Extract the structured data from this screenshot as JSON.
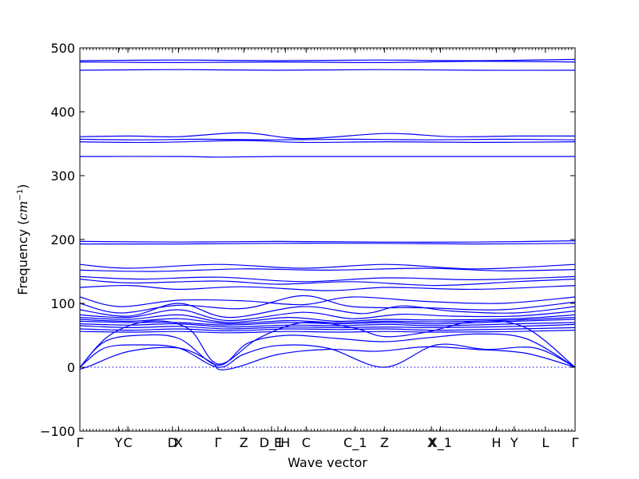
{
  "chart_data": {
    "type": "line",
    "title": "",
    "xlabel": "Wave vector",
    "ylabel": "Frequency ($cm^{-1}$)",
    "ylabel_text": "Frequency (",
    "ylabel_unit_base": "cm",
    "ylabel_unit_sup": "−1",
    "ylabel_close": ")",
    "xlim": [
      0,
      1
    ],
    "ylim": [
      -100,
      500
    ],
    "y_ticks": [
      -100,
      0,
      100,
      200,
      300,
      400,
      500
    ],
    "y_tick_labels": [
      "−100",
      "0",
      "100",
      "200",
      "300",
      "400",
      "500"
    ],
    "grid": false,
    "zero_line": {
      "y": 0,
      "style": "dotted",
      "color": "#0000ff"
    },
    "line_color": "#0000ff",
    "x_tick_labels": [
      {
        "label": "Γ",
        "x": 0.0
      },
      {
        "label": "Y",
        "x": 0.078
      },
      {
        "label": "C",
        "x": 0.097
      },
      {
        "label": "D",
        "x": 0.187
      },
      {
        "label": "X",
        "x": 0.199
      },
      {
        "label": "Γ",
        "x": 0.279
      },
      {
        "label": "Z",
        "x": 0.331
      },
      {
        "label": "D_1",
        "x": 0.387
      },
      {
        "label": "E",
        "x": 0.4
      },
      {
        "label": "H",
        "x": 0.415
      },
      {
        "label": "C",
        "x": 0.457
      },
      {
        "label": "C_1",
        "x": 0.556
      },
      {
        "label": "Z",
        "x": 0.615
      },
      {
        "label": "X",
        "x": 0.71
      },
      {
        "label": "X_1",
        "x": 0.728
      },
      {
        "label": "H",
        "x": 0.841
      },
      {
        "label": "Y",
        "x": 0.877
      },
      {
        "label": "L",
        "x": 0.94
      },
      {
        "label": "Γ",
        "x": 1.0
      }
    ],
    "series": [
      {
        "x": [
          0,
          0.2,
          0.4,
          0.6,
          0.8,
          1.0
        ],
        "values": [
          480,
          481,
          480,
          481,
          480,
          482
        ]
      },
      {
        "x": [
          0,
          0.2,
          0.4,
          0.6,
          0.8,
          1.0
        ],
        "values": [
          478,
          477,
          478,
          477,
          479,
          478
        ]
      },
      {
        "x": [
          0,
          0.2,
          0.4,
          0.6,
          0.8,
          1.0
        ],
        "values": [
          465,
          466,
          465,
          466,
          465,
          465
        ]
      },
      {
        "x": [
          0,
          0.1,
          0.2,
          0.33,
          0.45,
          0.62,
          0.75,
          0.88,
          1.0
        ],
        "values": [
          361,
          362,
          361,
          367,
          358,
          366,
          361,
          362,
          362
        ]
      },
      {
        "x": [
          0,
          0.12,
          0.25,
          0.4,
          0.55,
          0.7,
          0.85,
          1.0
        ],
        "values": [
          357,
          356,
          357,
          356,
          357,
          356,
          357,
          356
        ]
      },
      {
        "x": [
          0,
          0.15,
          0.33,
          0.45,
          0.62,
          0.8,
          1.0
        ],
        "values": [
          353,
          352,
          355,
          352,
          353,
          352,
          353
        ]
      },
      {
        "x": [
          0,
          0.2,
          0.279,
          0.4,
          0.6,
          0.8,
          1.0
        ],
        "values": [
          330,
          330,
          329,
          330,
          330,
          330,
          330
        ]
      },
      {
        "x": [
          0,
          0.2,
          0.4,
          0.6,
          0.8,
          1.0
        ],
        "values": [
          197,
          196,
          197,
          196,
          196,
          198
        ]
      },
      {
        "x": [
          0,
          0.2,
          0.4,
          0.6,
          0.8,
          1.0
        ],
        "values": [
          193,
          193,
          194,
          194,
          193,
          194
        ]
      },
      {
        "x": [
          0,
          0.1,
          0.279,
          0.45,
          0.62,
          0.8,
          1.0
        ],
        "values": [
          161,
          155,
          161,
          155,
          161,
          154,
          161
        ]
      },
      {
        "x": [
          0,
          0.15,
          0.33,
          0.5,
          0.7,
          0.85,
          1.0
        ],
        "values": [
          152,
          150,
          154,
          152,
          155,
          151,
          153
        ]
      },
      {
        "x": [
          0,
          0.12,
          0.279,
          0.45,
          0.62,
          0.8,
          1.0
        ],
        "values": [
          142,
          138,
          141,
          134,
          140,
          137,
          142
        ]
      },
      {
        "x": [
          0,
          0.1,
          0.279,
          0.4,
          0.55,
          0.72,
          0.88,
          1.0
        ],
        "values": [
          138,
          132,
          135,
          130,
          134,
          128,
          134,
          138
        ]
      },
      {
        "x": [
          0,
          0.1,
          0.2,
          0.33,
          0.5,
          0.62,
          0.8,
          1.0
        ],
        "values": [
          125,
          128,
          122,
          126,
          120,
          125,
          122,
          128
        ]
      },
      {
        "x": [
          0,
          0.08,
          0.2,
          0.33,
          0.45,
          0.55,
          0.7,
          0.85,
          1.0
        ],
        "values": [
          110,
          95,
          105,
          104,
          98,
          110,
          103,
          100,
          110
        ]
      },
      {
        "x": [
          0,
          0.08,
          0.2,
          0.33,
          0.45,
          0.55,
          0.7,
          0.85,
          1.0
        ],
        "values": [
          100,
          85,
          97,
          92,
          112,
          95,
          93,
          90,
          102
        ]
      },
      {
        "x": [
          0,
          0.1,
          0.2,
          0.3,
          0.45,
          0.57,
          0.65,
          0.75,
          0.88,
          1.0
        ],
        "values": [
          90,
          80,
          100,
          78,
          95,
          84,
          96,
          88,
          85,
          95
        ]
      },
      {
        "x": [
          0,
          0.1,
          0.2,
          0.3,
          0.45,
          0.55,
          0.65,
          0.75,
          0.88,
          1.0
        ],
        "values": [
          82,
          78,
          90,
          73,
          86,
          76,
          83,
          80,
          80,
          88
        ]
      },
      {
        "x": [
          0,
          0.1,
          0.2,
          0.3,
          0.42,
          0.52,
          0.62,
          0.72,
          0.88,
          1.0
        ],
        "values": [
          78,
          75,
          82,
          70,
          78,
          72,
          75,
          74,
          76,
          82
        ]
      },
      {
        "x": [
          0,
          0.1,
          0.2,
          0.3,
          0.42,
          0.52,
          0.62,
          0.72,
          0.88,
          1.0
        ],
        "values": [
          75,
          72,
          76,
          68,
          73,
          70,
          72,
          71,
          74,
          78
        ]
      },
      {
        "x": [
          0,
          0.1,
          0.2,
          0.3,
          0.42,
          0.52,
          0.62,
          0.72,
          0.88,
          1.0
        ],
        "values": [
          72,
          70,
          70,
          66,
          70,
          68,
          70,
          68,
          72,
          75
        ]
      },
      {
        "x": [
          0,
          0.1,
          0.2,
          0.3,
          0.42,
          0.52,
          0.62,
          0.72,
          0.88,
          1.0
        ],
        "values": [
          68,
          66,
          68,
          63,
          66,
          65,
          67,
          65,
          68,
          70
        ]
      },
      {
        "x": [
          0,
          0.1,
          0.2,
          0.3,
          0.42,
          0.52,
          0.62,
          0.72,
          0.88,
          1.0
        ],
        "values": [
          65,
          62,
          64,
          60,
          63,
          62,
          63,
          62,
          64,
          67
        ]
      },
      {
        "x": [
          0,
          0.1,
          0.2,
          0.3,
          0.42,
          0.52,
          0.62,
          0.72,
          0.88,
          1.0
        ],
        "values": [
          60,
          58,
          60,
          57,
          60,
          59,
          60,
          58,
          60,
          62
        ]
      },
      {
        "x": [
          0,
          0.1,
          0.2,
          0.3,
          0.42,
          0.52,
          0.62,
          0.72,
          0.88,
          1.0
        ],
        "values": [
          56,
          55,
          56,
          54,
          56,
          55,
          56,
          55,
          56,
          58
        ]
      },
      {
        "x": [
          0,
          0.06,
          0.14,
          0.22,
          0.279,
          0.36,
          0.45,
          0.55,
          0.615,
          0.7,
          0.8,
          0.9,
          1.0
        ],
        "values": [
          0,
          50,
          72,
          60,
          5,
          45,
          70,
          62,
          48,
          55,
          72,
          62,
          0
        ]
      },
      {
        "x": [
          0,
          0.05,
          0.12,
          0.2,
          0.279,
          0.34,
          0.42,
          0.52,
          0.615,
          0.7,
          0.8,
          0.9,
          1.0
        ],
        "values": [
          0,
          40,
          50,
          45,
          3,
          38,
          50,
          45,
          40,
          46,
          52,
          45,
          0
        ]
      },
      {
        "x": [
          0,
          0.05,
          0.12,
          0.2,
          0.279,
          0.33,
          0.4,
          0.5,
          0.615,
          0.72,
          0.82,
          0.92,
          1.0
        ],
        "values": [
          0,
          30,
          35,
          30,
          0,
          20,
          34,
          30,
          0,
          35,
          28,
          30,
          0
        ]
      },
      {
        "x": [
          0,
          0.02,
          0.1,
          0.2,
          0.265,
          0.279,
          0.3,
          0.33,
          0.4,
          0.5,
          0.6,
          0.7,
          0.8,
          0.9,
          1.0
        ],
        "values": [
          -3,
          2,
          25,
          30,
          8,
          -3,
          -3,
          3,
          20,
          28,
          25,
          32,
          28,
          22,
          0
        ]
      }
    ]
  }
}
